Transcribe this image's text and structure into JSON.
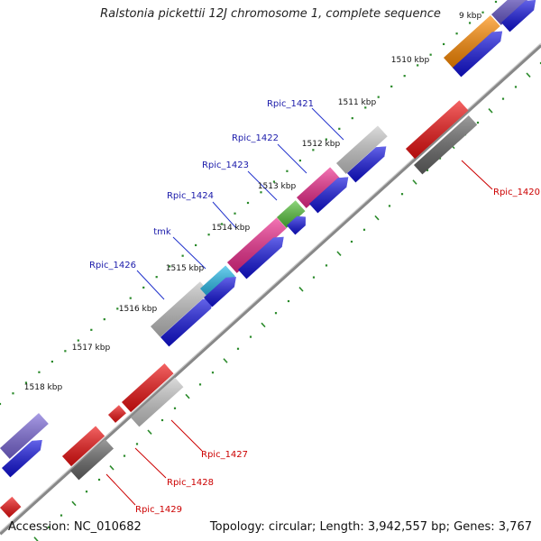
{
  "title": "Ralstonia pickettii 12J chromosome 1, complete sequence",
  "footer": {
    "accession": "Accession: NC_010682",
    "summary": "Topology: circular; Length: 3,942,557 bp; Genes: 3,767"
  },
  "colors": {
    "label_forward": "#1a1aaa",
    "label_reverse": "#cc0000",
    "tick_label": "#111111",
    "dots": "#2a8a2a",
    "backbone": "#888888"
  },
  "ticks": [
    "1510 kbp",
    "1511 kbp",
    "1512 kbp",
    "1513 kbp",
    "1514 kbp",
    "1515 kbp",
    "1516 kbp",
    "1517 kbp",
    "1518 kbp"
  ],
  "partial_tick": "9 kbp",
  "genes": [
    {
      "name": "Rpic_1426",
      "color": "#c0c0c0",
      "strand": "forward"
    },
    {
      "name": "tmk",
      "color": "#22b8e8",
      "strand": "forward"
    },
    {
      "name": "Rpic_1424",
      "color": "#ee2a8c",
      "strand": "forward"
    },
    {
      "name": "Rpic_1423",
      "color": "#55c23a",
      "strand": "forward"
    },
    {
      "name": "Rpic_1422",
      "color": "#ee2a8c",
      "strand": "forward"
    },
    {
      "name": "Rpic_1421",
      "color": "#c8c8c8",
      "strand": "forward"
    },
    {
      "name": "",
      "color": "#ff8a00",
      "strand": "forward"
    },
    {
      "name": "",
      "color": "#6a5acd",
      "strand": "forward"
    },
    {
      "name": "",
      "color": "#7b68d8",
      "strand": "forward"
    },
    {
      "name": "Rpic_1420",
      "color": "#ee1111",
      "strand": "reverse"
    },
    {
      "name": "Rpic_1427",
      "color": "#ee1111",
      "strand": "reverse"
    },
    {
      "name": "Rpic_1428",
      "color": "#ee1111",
      "strand": "reverse"
    },
    {
      "name": "Rpic_1429",
      "color": "#ee1111",
      "strand": "reverse"
    }
  ],
  "tracks": {
    "cds_forward": "#1111dd",
    "cds_reverse": "#666666",
    "pseudo_light": "#c8c8c8",
    "small_red": "#ee1111"
  }
}
